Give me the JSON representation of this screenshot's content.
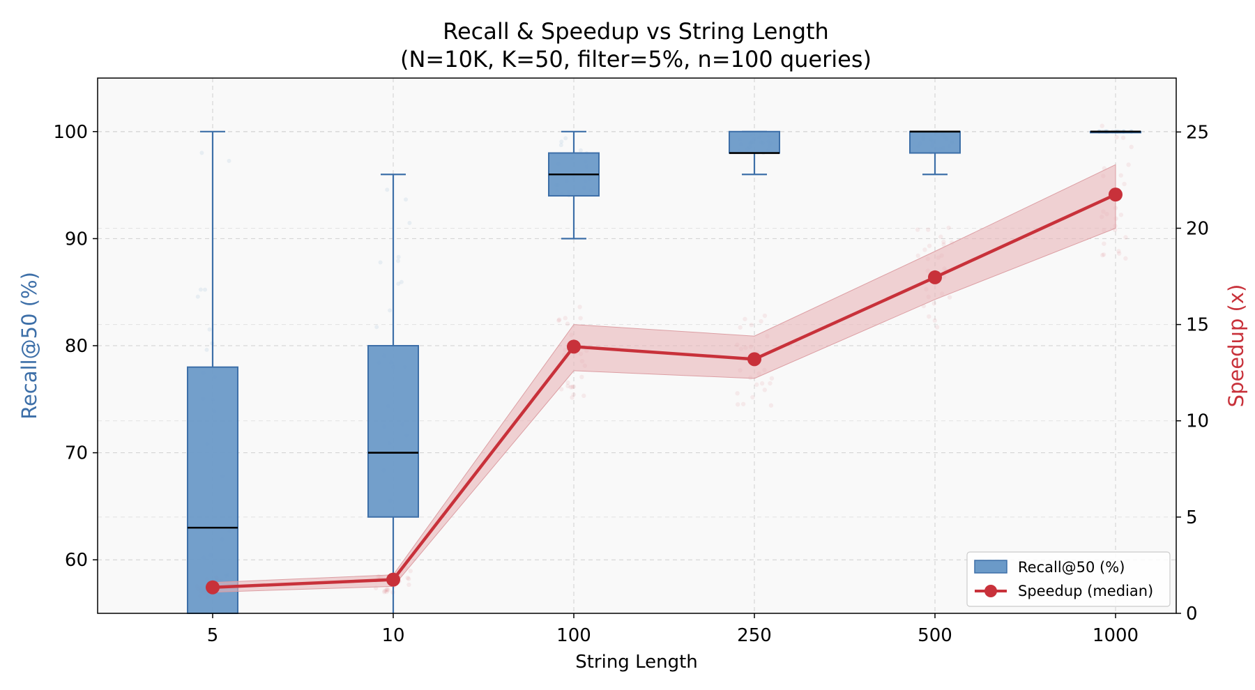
{
  "chart_data": {
    "type": "box+line",
    "title": "Recall & Speedup vs String Length",
    "subtitle": "(N=10K, K=50, filter=5%, n=100 queries)",
    "xlabel": "String Length",
    "ylabel_left": "Recall@50 (%)",
    "ylabel_right": "Speedup (x)",
    "categories": [
      "5",
      "10",
      "100",
      "250",
      "500",
      "1000"
    ],
    "ylim_left": [
      55,
      105
    ],
    "ylim_right": [
      0,
      27.8
    ],
    "yticks_left": [
      60,
      70,
      80,
      90,
      100
    ],
    "yticks_right": [
      0,
      5,
      10,
      15,
      20,
      25
    ],
    "grid": true,
    "legend_position": "lower-right",
    "colors": {
      "recall": "#6b9ac8",
      "recall_edge": "#3d6fa8",
      "speedup": "#c8313a",
      "band": "#e8b4b8",
      "background": "#f9f9f9"
    },
    "recall_box": [
      {
        "category": "5",
        "whisker_low": 55,
        "q1": 55,
        "median": 63,
        "q3": 78,
        "whisker_high": 100
      },
      {
        "category": "10",
        "whisker_low": 55,
        "q1": 64,
        "median": 70,
        "q3": 80,
        "whisker_high": 96
      },
      {
        "category": "100",
        "whisker_low": 90,
        "q1": 94,
        "median": 96,
        "q3": 98,
        "whisker_high": 100
      },
      {
        "category": "250",
        "whisker_low": 96,
        "q1": 98,
        "median": 98,
        "q3": 100,
        "whisker_high": 100
      },
      {
        "category": "500",
        "whisker_low": 96,
        "q1": 98,
        "median": 100,
        "q3": 100,
        "whisker_high": 100
      },
      {
        "category": "1000",
        "whisker_low": 100,
        "q1": 100,
        "median": 100,
        "q3": 100,
        "whisker_high": 100
      }
    ],
    "speedup": {
      "median": [
        1.35,
        1.75,
        13.85,
        13.2,
        17.45,
        21.75
      ],
      "band_low": [
        1.1,
        1.4,
        12.6,
        12.2,
        16.3,
        20.0
      ],
      "band_high": [
        1.6,
        2.0,
        15.0,
        14.4,
        18.8,
        23.3
      ]
    },
    "legend": [
      {
        "key": "recall",
        "label": "Recall@50 (%)"
      },
      {
        "key": "speedup",
        "label": "Speedup (median)"
      }
    ]
  }
}
